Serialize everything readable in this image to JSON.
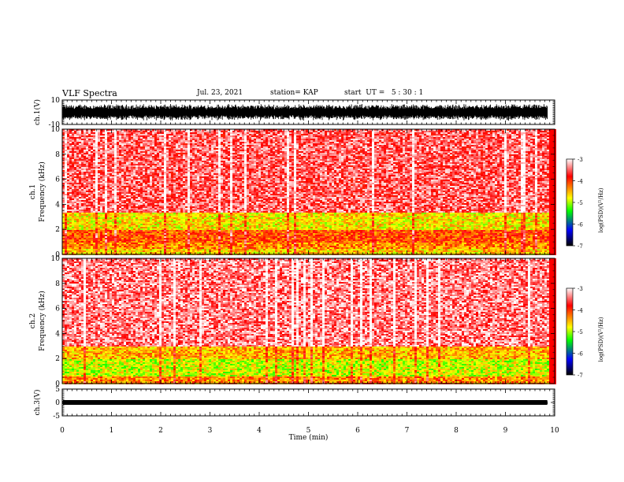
{
  "header": {
    "title": "VLF Spectra",
    "date": "Jul. 23, 2021",
    "station": "station= KAP",
    "start": "start  UT =   5 : 30 : 1"
  },
  "colorbar": {
    "ticks": [
      "-3",
      "-4",
      "-5",
      "-6",
      "-7"
    ],
    "label": "log(PSD)(V²/Hz)",
    "stops": [
      "#ffffff",
      "#ff0000",
      "#ffff00",
      "#00ff00",
      "#0000ff",
      "#000000"
    ]
  },
  "chart_data": [
    {
      "type": "line",
      "name": "ch.1 waveform",
      "ylabel": "ch.1(V)",
      "ylim": [
        -10,
        10
      ],
      "yticks": [
        "10",
        "-10"
      ],
      "xlim": [
        0,
        10
      ],
      "description_values": {
        "approx_peak_to_peak_V": [
          -10,
          10
        ],
        "data_end_min": 9.85
      }
    },
    {
      "type": "heatmap",
      "name": "ch.1 spectrogram",
      "ylabel": "ch.1\nFrequency (kHz)",
      "ylim": [
        0,
        10
      ],
      "yticks": [
        "0",
        "2",
        "4",
        "6",
        "8",
        "10"
      ],
      "xlim": [
        0,
        10
      ],
      "zlim": [
        -7,
        -3
      ],
      "bands_khz": [
        {
          "from": 0,
          "to": 0.5,
          "level": -4.6
        },
        {
          "from": 0.5,
          "to": 1.0,
          "level": -4.3
        },
        {
          "from": 1.0,
          "to": 2.0,
          "level": -4.1
        },
        {
          "from": 2.0,
          "to": 3.3,
          "level": -4.7
        },
        {
          "from": 3.3,
          "to": 10,
          "level": -3.5
        }
      ]
    },
    {
      "type": "heatmap",
      "name": "ch.2 spectrogram",
      "ylabel": "ch.2\nFrequency (kHz)",
      "ylim": [
        0,
        10
      ],
      "yticks": [
        "0",
        "2",
        "4",
        "6",
        "8",
        "10"
      ],
      "xlim": [
        0,
        10
      ],
      "zlim": [
        -7,
        -3
      ],
      "bands_khz": [
        {
          "from": 0,
          "to": 0.6,
          "level": -4.3
        },
        {
          "from": 0.6,
          "to": 2.0,
          "level": -4.9
        },
        {
          "from": 2.0,
          "to": 3.0,
          "level": -4.5
        },
        {
          "from": 3.0,
          "to": 10,
          "level": -3.4
        }
      ]
    },
    {
      "type": "line",
      "name": "ch.3 waveform",
      "ylabel": "ch.3(V)",
      "ylim": [
        -5,
        5
      ],
      "yticks": [
        "5",
        "0",
        "-5"
      ],
      "xlim": [
        0,
        10
      ],
      "description_values": {
        "approx_band_V": [
          -0.8,
          0.8
        ],
        "data_end_min": 9.85
      }
    }
  ],
  "xaxis": {
    "label": "Time  (min)",
    "ticks": [
      "0",
      "1",
      "2",
      "3",
      "4",
      "5",
      "6",
      "7",
      "8",
      "9",
      "10"
    ],
    "range": [
      0,
      10
    ],
    "data_end": 9.85
  }
}
